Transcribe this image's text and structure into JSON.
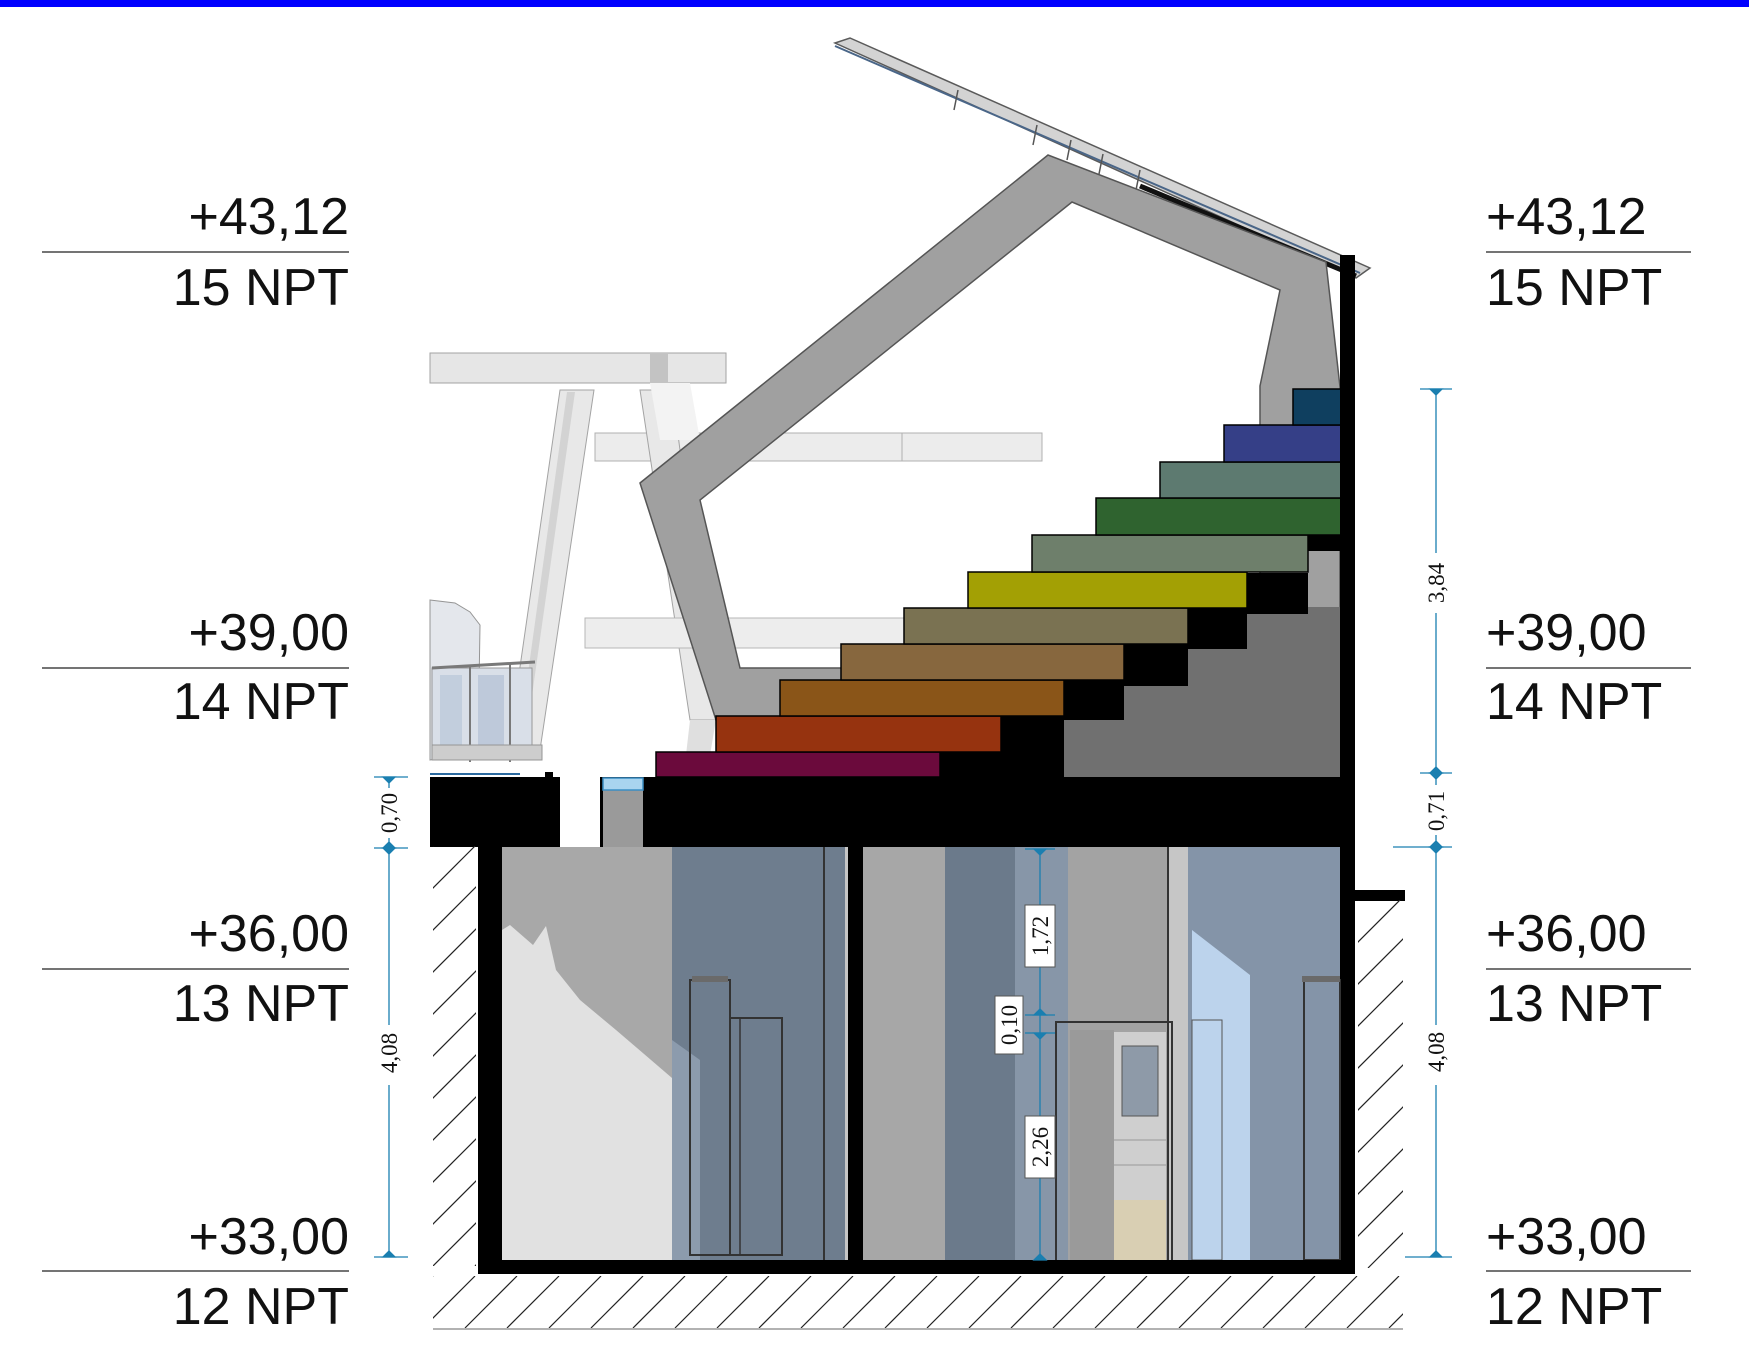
{
  "levels_left": [
    {
      "value": "+43,12",
      "name": "15 NPT"
    },
    {
      "value": "+39,00",
      "name": "14 NPT"
    },
    {
      "value": "+36,00",
      "name": "13 NPT"
    },
    {
      "value": "+33,00",
      "name": "12 NPT"
    }
  ],
  "levels_right": [
    {
      "value": "+43,12",
      "name": "15 NPT"
    },
    {
      "value": "+39,00",
      "name": "14 NPT"
    },
    {
      "value": "+36,00",
      "name": "13 NPT"
    },
    {
      "value": "+33,00",
      "name": "12 NPT"
    }
  ],
  "dimensions": {
    "left_slab": "0,70",
    "left_storey": "4,08",
    "right_stair": "3,84",
    "right_slab": "0,71",
    "right_storey": "4,08",
    "mid_upper": "1,72",
    "mid_gap": "0,10",
    "mid_lower": "2,26"
  },
  "colors": {
    "frame_border": "#0000ff",
    "structure": "#000000",
    "dimension_line": "#1a7fb0",
    "steps": [
      "#6b0a3c",
      "#96330f",
      "#8a5518",
      "#87673e",
      "#7a7252",
      "#a3a004",
      "#6e7f6b",
      "#2f632f",
      "#5d7a70",
      "#353f87",
      "#0f3f5f"
    ]
  }
}
